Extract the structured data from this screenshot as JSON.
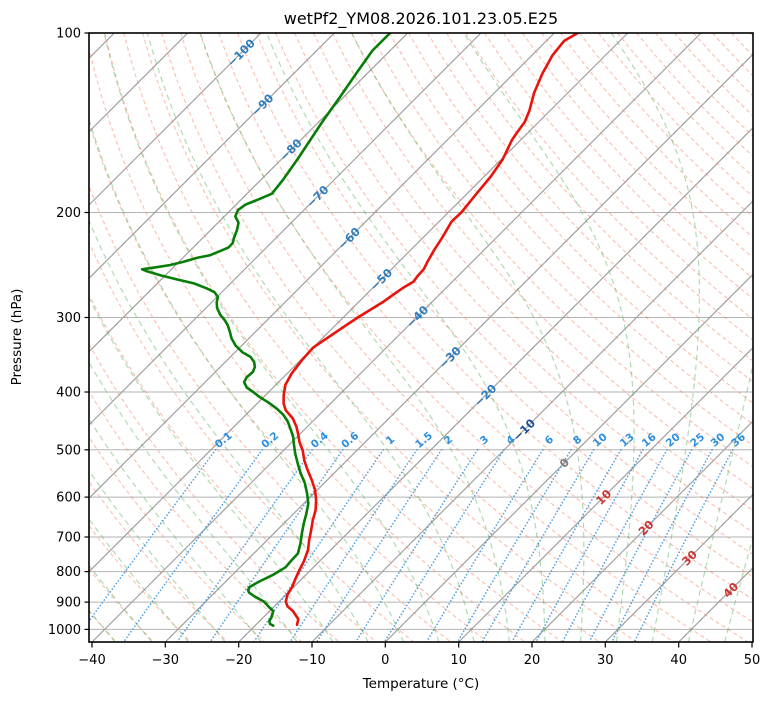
{
  "chart_data": {
    "type": "skewt-logp",
    "title": "wetPf2_YM08.2026.101.23.05.E25",
    "x_axis": {
      "label": "Temperature (°C)",
      "ticks": [
        -40,
        -30,
        -20,
        -10,
        0,
        10,
        20,
        30,
        40,
        50
      ],
      "tick_labels": [
        "−40",
        "−30",
        "−20",
        "−10",
        "0",
        "10",
        "20",
        "30",
        "40",
        "50"
      ],
      "range_c": [
        -40.4,
        50.1
      ]
    },
    "y_axis": {
      "label": "Pressure (hPa)",
      "scale": "log",
      "ticks": [
        100,
        200,
        300,
        400,
        500,
        600,
        700,
        800,
        900,
        1000
      ],
      "tick_labels": [
        "100",
        "200",
        "300",
        "400",
        "500",
        "600",
        "700",
        "800",
        "900",
        "1000"
      ],
      "range_hpa": [
        100,
        1050
      ]
    },
    "skew_deg": 45,
    "grid": {
      "isobars": {
        "values": [
          200,
          300,
          400,
          500,
          600,
          700,
          800,
          900,
          1000
        ],
        "color": "#b3b3b3"
      },
      "isotherms": {
        "start_c": -130,
        "end_c": 50,
        "step_c": 10,
        "color": "#9a9a9a"
      },
      "dry_adiabats": {
        "start_c": -45,
        "end_c": 195,
        "step_c": 5,
        "color": "#f8886a",
        "opacity": 0.5,
        "dash": "4 3"
      },
      "moist_adiabats": {
        "start_c": -40,
        "end_c": 50,
        "step_c": 5,
        "color": "#4faf4f",
        "opacity": 0.45,
        "dash": "5.5 4"
      },
      "mixing_ratio": {
        "values": [
          0.1,
          0.2,
          0.4,
          0.6,
          1,
          1.5,
          2,
          3,
          4,
          6,
          8,
          10,
          13,
          16,
          20,
          25,
          30,
          36
        ],
        "labels": [
          "0.1",
          "0.2",
          "0.4",
          "0.6",
          "1",
          "1.5",
          "2",
          "3",
          "4",
          "6",
          "8",
          "10",
          "13",
          "16",
          "20",
          "25",
          "30",
          "36"
        ],
        "color": "#3d95dd",
        "opacity": 0.9,
        "top_p": 500,
        "label_p": 481,
        "calib_offset_c": -1.4,
        "label_color": "#2d8fe0"
      }
    },
    "isotherm_labels": {
      "neg_color": "#2e7dbe",
      "minus10_color": "#1b4f9e",
      "zero_color": "#7f7f7f",
      "pos_color": "#cc3333",
      "items": [
        {
          "t": -100,
          "label": "−100",
          "p": 108
        },
        {
          "t": -90,
          "label": "−90",
          "p": 132
        },
        {
          "t": -80,
          "label": "−80",
          "p": 157
        },
        {
          "t": -70,
          "label": "−70",
          "p": 188
        },
        {
          "t": -60,
          "label": "−60",
          "p": 221
        },
        {
          "t": -50,
          "label": "−50",
          "p": 259
        },
        {
          "t": -40,
          "label": "−40",
          "p": 299
        },
        {
          "t": -30,
          "label": "−30",
          "p": 350
        },
        {
          "t": -20,
          "label": "−20",
          "p": 405
        },
        {
          "t": -10,
          "label": "−10",
          "p": 463
        },
        {
          "t": 0,
          "label": "0",
          "p": 526
        },
        {
          "t": 10,
          "label": "10",
          "p": 600
        },
        {
          "t": 20,
          "label": "20",
          "p": 676
        },
        {
          "t": 30,
          "label": "30",
          "p": 759
        },
        {
          "t": 40,
          "label": "40",
          "p": 859
        }
      ]
    },
    "series": [
      {
        "name": "temperature",
        "color": "#e8140c",
        "width": 2.6,
        "points": [
          [
            100,
            -56.8
          ],
          [
            103,
            -57.6
          ],
          [
            109,
            -57.2
          ],
          [
            117,
            -56.1
          ],
          [
            126,
            -54.6
          ],
          [
            135,
            -52.8
          ],
          [
            141,
            -51.9
          ],
          [
            147,
            -51.5
          ],
          [
            151,
            -51.2
          ],
          [
            163,
            -49.8
          ],
          [
            174,
            -49.1
          ],
          [
            186,
            -48.7
          ],
          [
            200,
            -48.2
          ],
          [
            207,
            -48.3
          ],
          [
            220,
            -47.4
          ],
          [
            231,
            -46.8
          ],
          [
            242,
            -46.1
          ],
          [
            249,
            -45.6
          ],
          [
            256,
            -45.5
          ],
          [
            261,
            -45.3
          ],
          [
            268,
            -45.9
          ],
          [
            275,
            -46.3
          ],
          [
            283,
            -46.7
          ],
          [
            292,
            -47.4
          ],
          [
            300,
            -48.0
          ],
          [
            312,
            -48.7
          ],
          [
            325,
            -49.4
          ],
          [
            337,
            -50.0
          ],
          [
            354,
            -49.8
          ],
          [
            372,
            -49.4
          ],
          [
            389,
            -48.7
          ],
          [
            405,
            -47.5
          ],
          [
            418,
            -46.4
          ],
          [
            429,
            -45.2
          ],
          [
            443,
            -43.1
          ],
          [
            457,
            -41.5
          ],
          [
            471,
            -40.2
          ],
          [
            486,
            -38.9
          ],
          [
            501,
            -37.4
          ],
          [
            521,
            -35.8
          ],
          [
            541,
            -34.0
          ],
          [
            562,
            -32.1
          ],
          [
            584,
            -30.3
          ],
          [
            607,
            -28.8
          ],
          [
            631,
            -27.5
          ],
          [
            656,
            -26.5
          ],
          [
            681,
            -25.4
          ],
          [
            708,
            -24.3
          ],
          [
            736,
            -23.1
          ],
          [
            769,
            -22.1
          ],
          [
            797,
            -21.5
          ],
          [
            822,
            -20.9
          ],
          [
            849,
            -20.2
          ],
          [
            875,
            -19.8
          ],
          [
            898,
            -19.1
          ],
          [
            915,
            -18.2
          ],
          [
            932,
            -16.8
          ],
          [
            961,
            -15.0
          ],
          [
            982,
            -14.4
          ]
        ]
      },
      {
        "name": "dewpoint",
        "color": "#077d07",
        "width": 2.6,
        "points": [
          [
            100,
            -82.4
          ],
          [
            107,
            -82.4
          ],
          [
            117,
            -81.5
          ],
          [
            128,
            -80.5
          ],
          [
            140,
            -79.6
          ],
          [
            151,
            -78.7
          ],
          [
            163,
            -77.8
          ],
          [
            176,
            -77.0
          ],
          [
            186,
            -76.6
          ],
          [
            190,
            -77.6
          ],
          [
            194,
            -78.7
          ],
          [
            198,
            -79.0
          ],
          [
            203,
            -78.5
          ],
          [
            208,
            -77.2
          ],
          [
            214,
            -76.4
          ],
          [
            221,
            -75.7
          ],
          [
            225,
            -75.2
          ],
          [
            229,
            -75.2
          ],
          [
            231,
            -75.6
          ],
          [
            236,
            -76.7
          ],
          [
            238,
            -78.0
          ],
          [
            242,
            -79.4
          ],
          [
            245,
            -80.8
          ],
          [
            247,
            -82.3
          ],
          [
            249,
            -84.0
          ],
          [
            251,
            -83.0
          ],
          [
            255,
            -80.6
          ],
          [
            259,
            -77.8
          ],
          [
            263,
            -75.0
          ],
          [
            268,
            -72.6
          ],
          [
            272,
            -71.0
          ],
          [
            277,
            -69.9
          ],
          [
            283,
            -69.3
          ],
          [
            289,
            -68.5
          ],
          [
            297,
            -67.1
          ],
          [
            303,
            -65.8
          ],
          [
            309,
            -64.7
          ],
          [
            317,
            -63.5
          ],
          [
            325,
            -62.4
          ],
          [
            334,
            -60.9
          ],
          [
            343,
            -59.0
          ],
          [
            349,
            -57.3
          ],
          [
            356,
            -56.1
          ],
          [
            363,
            -55.3
          ],
          [
            370,
            -54.9
          ],
          [
            378,
            -55.0
          ],
          [
            385,
            -54.7
          ],
          [
            393,
            -53.6
          ],
          [
            400,
            -52.1
          ],
          [
            408,
            -50.5
          ],
          [
            416,
            -48.7
          ],
          [
            426,
            -46.7
          ],
          [
            436,
            -45.0
          ],
          [
            448,
            -43.4
          ],
          [
            462,
            -41.9
          ],
          [
            476,
            -40.5
          ],
          [
            491,
            -39.3
          ],
          [
            507,
            -38.0
          ],
          [
            527,
            -36.3
          ],
          [
            548,
            -34.5
          ],
          [
            569,
            -32.6
          ],
          [
            592,
            -30.9
          ],
          [
            615,
            -29.4
          ],
          [
            639,
            -28.3
          ],
          [
            664,
            -27.3
          ],
          [
            690,
            -26.2
          ],
          [
            718,
            -25.0
          ],
          [
            746,
            -24.0
          ],
          [
            769,
            -23.9
          ],
          [
            787,
            -23.8
          ],
          [
            811,
            -24.5
          ],
          [
            833,
            -25.5
          ],
          [
            849,
            -26.0
          ],
          [
            859,
            -25.8
          ],
          [
            868,
            -25.3
          ],
          [
            882,
            -23.9
          ],
          [
            898,
            -22.1
          ],
          [
            915,
            -20.8
          ],
          [
            932,
            -19.5
          ],
          [
            954,
            -18.9
          ],
          [
            968,
            -18.7
          ],
          [
            979,
            -18.2
          ],
          [
            986,
            -17.5
          ]
        ]
      }
    ]
  }
}
